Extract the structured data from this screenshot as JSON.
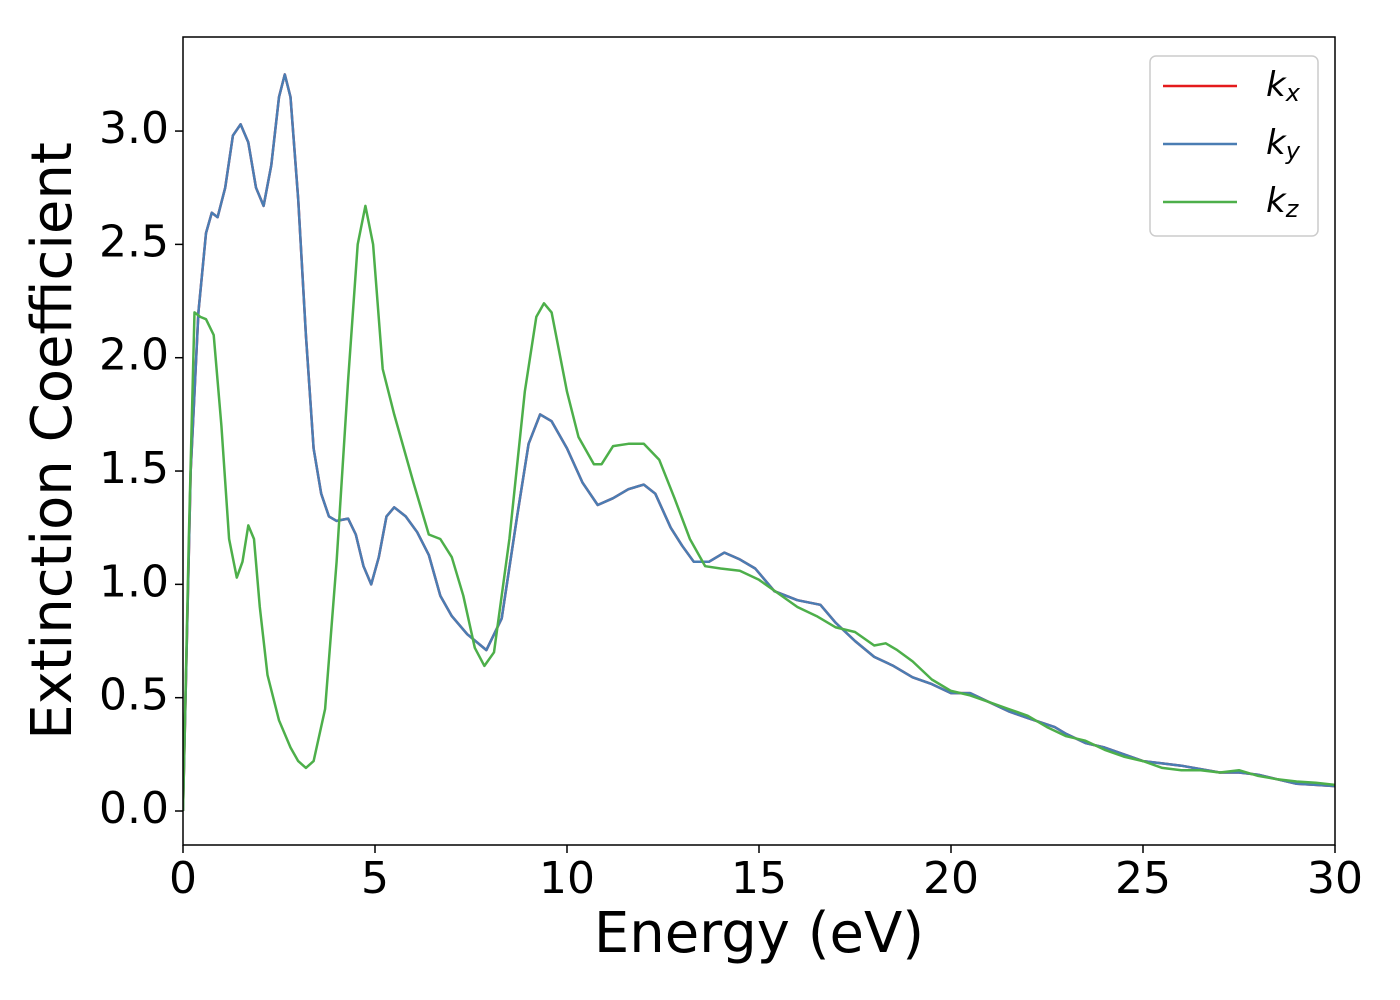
{
  "chart_data": {
    "type": "line",
    "x_label": "Energy (eV)",
    "y_label": "Extinction Coefficient",
    "xlim": [
      0,
      30
    ],
    "ylim": [
      -0.15,
      3.415
    ],
    "xticks": [
      0,
      5,
      10,
      15,
      20,
      25,
      30
    ],
    "yticks": [
      {
        "value": 0,
        "label": "0.0"
      },
      0.5,
      {
        "value": 1,
        "label": "1.0"
      },
      1.5,
      {
        "value": 2,
        "label": "2.0"
      },
      2.5,
      {
        "value": 3,
        "label": "3.0"
      }
    ],
    "grid": false,
    "legend": "upper right",
    "series": [
      {
        "name": "kx",
        "color": "#e41a1c",
        "x": [
          0,
          0.2,
          0.4,
          0.6,
          0.75,
          0.9,
          1.1,
          1.3,
          1.5,
          1.7,
          1.9,
          2.1,
          2.3,
          2.5,
          2.65,
          2.8,
          3.0,
          3.2,
          3.4,
          3.6,
          3.8,
          4.0,
          4.3,
          4.5,
          4.7,
          4.9,
          5.1,
          5.3,
          5.5,
          5.8,
          6.1,
          6.4,
          6.7,
          7.0,
          7.4,
          7.9,
          8.3,
          8.7,
          9.0,
          9.3,
          9.6,
          10.0,
          10.4,
          10.8,
          11.2,
          11.6,
          12.0,
          12.3,
          12.7,
          13.0,
          13.3,
          13.7,
          14.1,
          14.5,
          14.9,
          15.4,
          16.0,
          16.6,
          17.0,
          17.5,
          18.0,
          18.5,
          19.0,
          19.5,
          20.0,
          20.5,
          21.0,
          21.5,
          22.0,
          22.7,
          23.0,
          23.5,
          24.0,
          24.5,
          25.0,
          25.5,
          26.0,
          26.5,
          27.0,
          27.5,
          28.0,
          28.5,
          29.0,
          29.5,
          30.0
        ],
        "values": [
          0,
          1.5,
          2.2,
          2.55,
          2.64,
          2.62,
          2.75,
          2.98,
          3.03,
          2.95,
          2.75,
          2.67,
          2.85,
          3.15,
          3.25,
          3.15,
          2.7,
          2.1,
          1.6,
          1.4,
          1.3,
          1.28,
          1.29,
          1.22,
          1.08,
          1.0,
          1.12,
          1.3,
          1.34,
          1.3,
          1.23,
          1.13,
          0.95,
          0.86,
          0.78,
          0.71,
          0.85,
          1.3,
          1.62,
          1.75,
          1.72,
          1.6,
          1.45,
          1.35,
          1.38,
          1.42,
          1.44,
          1.4,
          1.25,
          1.17,
          1.1,
          1.1,
          1.14,
          1.11,
          1.07,
          0.97,
          0.93,
          0.91,
          0.83,
          0.75,
          0.68,
          0.64,
          0.59,
          0.56,
          0.52,
          0.52,
          0.48,
          0.44,
          0.41,
          0.37,
          0.34,
          0.3,
          0.28,
          0.25,
          0.22,
          0.21,
          0.2,
          0.185,
          0.17,
          0.17,
          0.16,
          0.14,
          0.12,
          0.115,
          0.11
        ]
      },
      {
        "name": "ky",
        "color": "#4a7db3",
        "x": [
          0,
          0.2,
          0.4,
          0.6,
          0.75,
          0.9,
          1.1,
          1.3,
          1.5,
          1.7,
          1.9,
          2.1,
          2.3,
          2.5,
          2.65,
          2.8,
          3.0,
          3.2,
          3.4,
          3.6,
          3.8,
          4.0,
          4.3,
          4.5,
          4.7,
          4.9,
          5.1,
          5.3,
          5.5,
          5.8,
          6.1,
          6.4,
          6.7,
          7.0,
          7.4,
          7.9,
          8.3,
          8.7,
          9.0,
          9.3,
          9.6,
          10.0,
          10.4,
          10.8,
          11.2,
          11.6,
          12.0,
          12.3,
          12.7,
          13.0,
          13.3,
          13.7,
          14.1,
          14.5,
          14.9,
          15.4,
          16.0,
          16.6,
          17.0,
          17.5,
          18.0,
          18.5,
          19.0,
          19.5,
          20.0,
          20.5,
          21.0,
          21.5,
          22.0,
          22.7,
          23.0,
          23.5,
          24.0,
          24.5,
          25.0,
          25.5,
          26.0,
          26.5,
          27.0,
          27.5,
          28.0,
          28.5,
          29.0,
          29.5,
          30.0
        ],
        "values": [
          0,
          1.5,
          2.2,
          2.55,
          2.64,
          2.62,
          2.75,
          2.98,
          3.03,
          2.95,
          2.75,
          2.67,
          2.85,
          3.15,
          3.25,
          3.15,
          2.7,
          2.1,
          1.6,
          1.4,
          1.3,
          1.28,
          1.29,
          1.22,
          1.08,
          1.0,
          1.12,
          1.3,
          1.34,
          1.3,
          1.23,
          1.13,
          0.95,
          0.86,
          0.78,
          0.71,
          0.85,
          1.3,
          1.62,
          1.75,
          1.72,
          1.6,
          1.45,
          1.35,
          1.38,
          1.42,
          1.44,
          1.4,
          1.25,
          1.17,
          1.1,
          1.1,
          1.14,
          1.11,
          1.07,
          0.97,
          0.93,
          0.91,
          0.83,
          0.75,
          0.68,
          0.64,
          0.59,
          0.56,
          0.52,
          0.52,
          0.48,
          0.44,
          0.41,
          0.37,
          0.34,
          0.3,
          0.28,
          0.25,
          0.22,
          0.21,
          0.2,
          0.185,
          0.17,
          0.17,
          0.16,
          0.14,
          0.12,
          0.115,
          0.11
        ]
      },
      {
        "name": "kz",
        "color": "#4daf4a",
        "x": [
          0,
          0.15,
          0.3,
          0.45,
          0.6,
          0.8,
          1.0,
          1.2,
          1.4,
          1.55,
          1.7,
          1.85,
          2.0,
          2.2,
          2.5,
          2.8,
          3.0,
          3.2,
          3.4,
          3.7,
          4.0,
          4.3,
          4.55,
          4.75,
          4.95,
          5.2,
          5.5,
          6.0,
          6.4,
          6.7,
          7.0,
          7.3,
          7.6,
          7.85,
          8.1,
          8.5,
          8.9,
          9.2,
          9.4,
          9.6,
          10.0,
          10.3,
          10.7,
          10.9,
          11.2,
          11.6,
          12.0,
          12.4,
          12.8,
          13.2,
          13.6,
          14.0,
          14.5,
          15.0,
          15.5,
          16.0,
          16.5,
          17.0,
          17.5,
          18.0,
          18.3,
          18.6,
          19.0,
          19.5,
          20.0,
          20.5,
          21.0,
          21.5,
          22.0,
          22.5,
          23.0,
          23.5,
          24.0,
          24.5,
          25.0,
          25.5,
          26.0,
          26.5,
          27.0,
          27.5,
          28.0,
          28.5,
          29.0,
          29.5,
          30.0
        ],
        "values": [
          0,
          1.2,
          2.2,
          2.18,
          2.17,
          2.1,
          1.7,
          1.2,
          1.03,
          1.1,
          1.26,
          1.2,
          0.9,
          0.6,
          0.4,
          0.28,
          0.22,
          0.19,
          0.22,
          0.45,
          1.1,
          1.9,
          2.5,
          2.67,
          2.5,
          1.95,
          1.75,
          1.45,
          1.22,
          1.2,
          1.12,
          0.95,
          0.72,
          0.64,
          0.7,
          1.2,
          1.85,
          2.18,
          2.24,
          2.2,
          1.85,
          1.65,
          1.53,
          1.53,
          1.61,
          1.62,
          1.62,
          1.55,
          1.38,
          1.2,
          1.08,
          1.07,
          1.06,
          1.02,
          0.96,
          0.9,
          0.86,
          0.81,
          0.79,
          0.73,
          0.74,
          0.71,
          0.66,
          0.58,
          0.53,
          0.51,
          0.48,
          0.45,
          0.42,
          0.37,
          0.33,
          0.31,
          0.27,
          0.24,
          0.22,
          0.19,
          0.18,
          0.18,
          0.17,
          0.18,
          0.155,
          0.14,
          0.13,
          0.125,
          0.115
        ]
      }
    ]
  }
}
